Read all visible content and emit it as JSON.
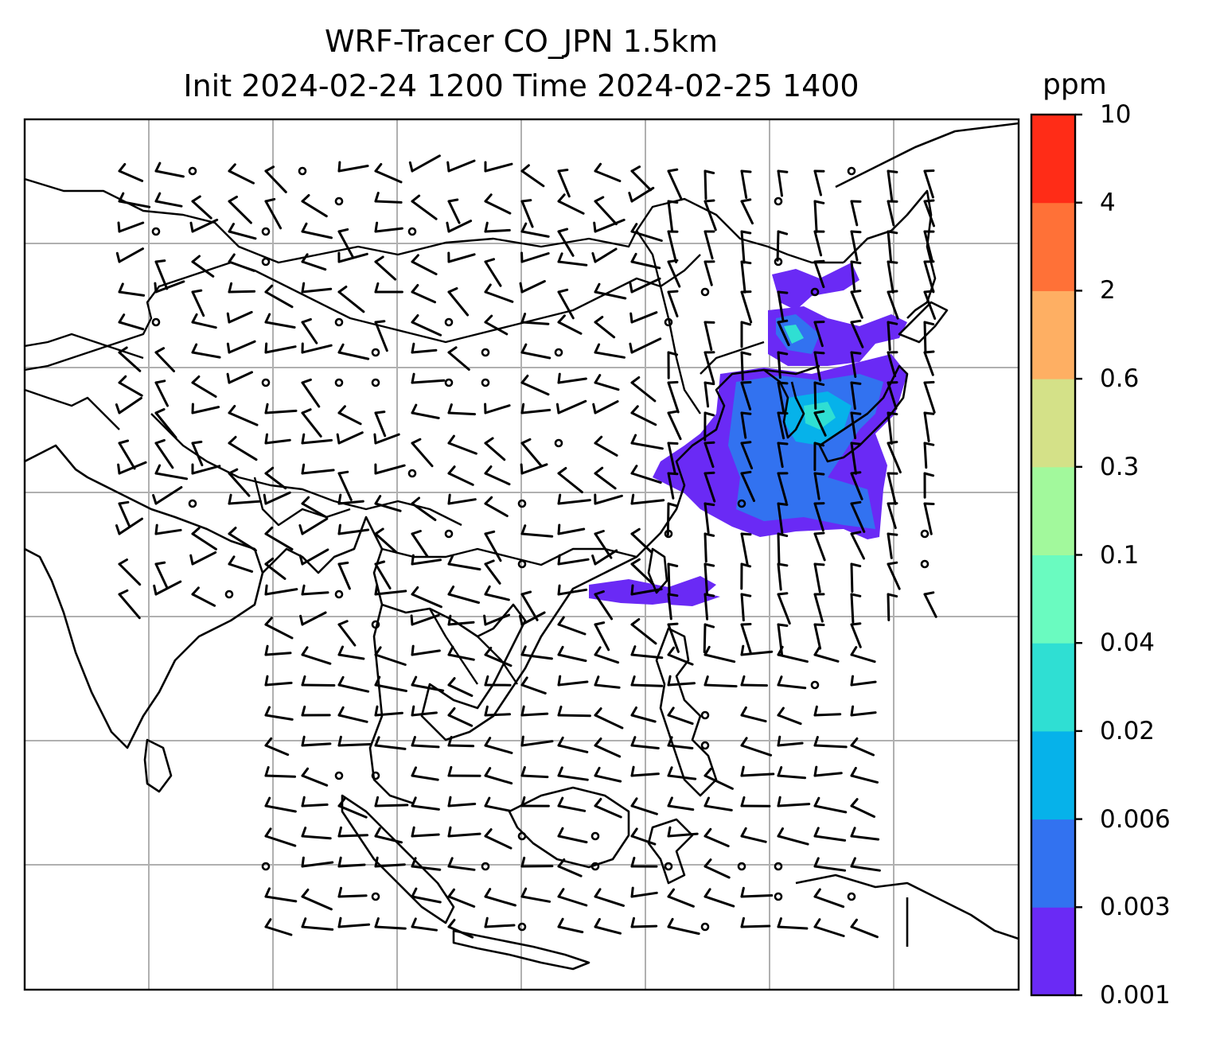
{
  "title": {
    "line1": "WRF-Tracer CO_JPN 1.5km",
    "line2": "Init 2024-02-24 1200 Time 2024-02-25 1400"
  },
  "colorbar": {
    "unit": "ppm",
    "levels": [
      "0.001",
      "0.003",
      "0.006",
      "0.02",
      "0.04",
      "0.1",
      "0.3",
      "0.6",
      "2",
      "4",
      "10"
    ],
    "colors": [
      "#6a2af5",
      "#3272f0",
      "#06b2ea",
      "#2fdfd3",
      "#6afbc0",
      "#a2f99c",
      "#d4e188",
      "#feaf63",
      "#ff7137",
      "#ff2c17"
    ]
  },
  "map": {
    "gridlines": true,
    "features": [
      "coastlines",
      "country-borders",
      "wind-barbs",
      "co-tracer-plume"
    ]
  }
}
